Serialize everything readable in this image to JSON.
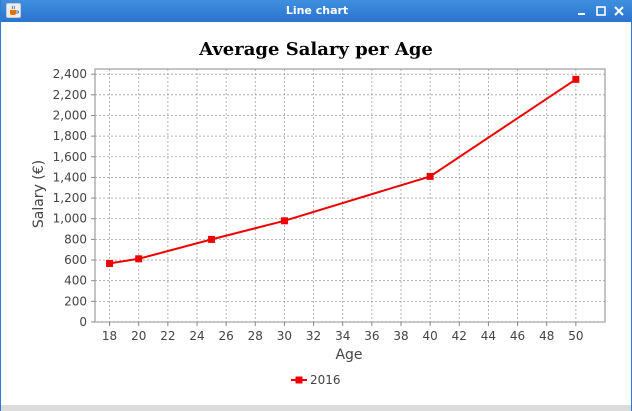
{
  "window": {
    "title": "Line chart",
    "icon": "java-cup-icon",
    "buttons": [
      "minimize-icon",
      "maximize-icon",
      "close-icon"
    ]
  },
  "colors": {
    "titlebar": "#2a74cf",
    "series": "#ee0000",
    "grid": "#a0a0a0"
  },
  "chart_data": {
    "type": "line",
    "title": "Average Salary per Age",
    "xlabel": "Age",
    "ylabel": "Salary (€)",
    "xlim": [
      17,
      52
    ],
    "ylim": [
      0,
      2450
    ],
    "xticks": [
      18,
      20,
      22,
      24,
      26,
      28,
      30,
      32,
      34,
      36,
      38,
      40,
      42,
      44,
      46,
      48,
      50
    ],
    "yticks": [
      0,
      200,
      400,
      600,
      800,
      1000,
      1200,
      1400,
      1600,
      1800,
      2000,
      2200,
      2400
    ],
    "xtick_labels": [
      "18",
      "20",
      "22",
      "24",
      "26",
      "28",
      "30",
      "32",
      "34",
      "36",
      "38",
      "40",
      "42",
      "44",
      "46",
      "48",
      "50"
    ],
    "ytick_labels": [
      "0",
      "200",
      "400",
      "600",
      "800",
      "1,000",
      "1,200",
      "1,400",
      "1,600",
      "1,800",
      "2,000",
      "2,200",
      "2,400"
    ],
    "grid": true,
    "legend_position": "bottom",
    "series": [
      {
        "name": "2016",
        "x": [
          18,
          20,
          25,
          30,
          40,
          50
        ],
        "y": [
          567,
          612,
          800,
          980,
          1410,
          2350
        ],
        "marker": "square"
      }
    ]
  }
}
